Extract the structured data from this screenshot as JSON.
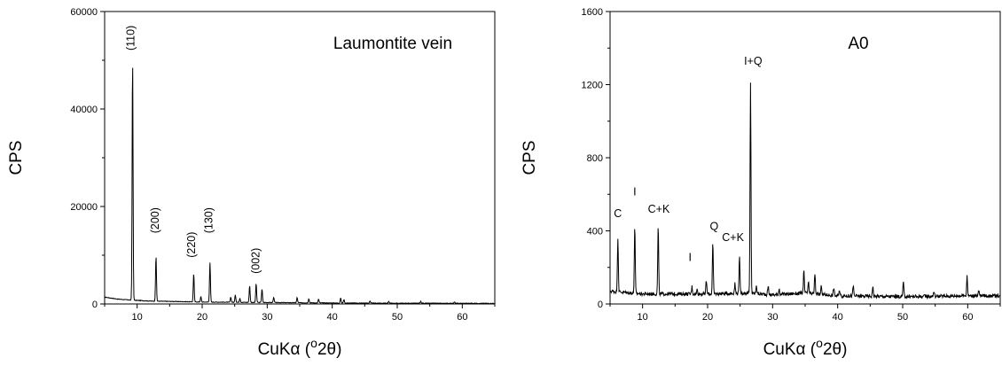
{
  "chart_data": [
    {
      "type": "line",
      "title": "Laumontite vein",
      "xlabel": "CuKα (",
      "xlabel_superscript": "o",
      "xlabel_suffix": "2θ)",
      "ylabel": "CPS",
      "xlim": [
        5,
        65
      ],
      "ylim": [
        0,
        60000
      ],
      "xticks": [
        10,
        20,
        30,
        40,
        50,
        60
      ],
      "yticks": [
        0,
        20000,
        40000,
        60000
      ],
      "baseline": [
        [
          5,
          1400
        ],
        [
          7,
          1000
        ],
        [
          9,
          800
        ],
        [
          12,
          600
        ],
        [
          20,
          400
        ],
        [
          30,
          300
        ],
        [
          40,
          200
        ],
        [
          50,
          150
        ],
        [
          65,
          120
        ]
      ],
      "peaks": [
        {
          "x": 9.3,
          "y": 50500
        },
        {
          "x": 12.9,
          "y": 9800
        },
        {
          "x": 18.7,
          "y": 6300
        },
        {
          "x": 19.8,
          "y": 1500
        },
        {
          "x": 21.2,
          "y": 8500
        },
        {
          "x": 24.4,
          "y": 1400
        },
        {
          "x": 25.1,
          "y": 1900
        },
        {
          "x": 25.8,
          "y": 1200
        },
        {
          "x": 27.3,
          "y": 3800
        },
        {
          "x": 28.3,
          "y": 4200
        },
        {
          "x": 29.2,
          "y": 3100
        },
        {
          "x": 31.0,
          "y": 1400
        },
        {
          "x": 34.6,
          "y": 1300
        },
        {
          "x": 36.4,
          "y": 1100
        },
        {
          "x": 37.9,
          "y": 1000
        },
        {
          "x": 41.3,
          "y": 1200
        },
        {
          "x": 41.8,
          "y": 900
        },
        {
          "x": 45.8,
          "y": 600
        },
        {
          "x": 48.7,
          "y": 500
        },
        {
          "x": 53.6,
          "y": 500
        },
        {
          "x": 58.8,
          "y": 400
        }
      ],
      "annotations": [
        {
          "text": "(110)",
          "x": 9.6,
          "y": 52000,
          "rotate": true
        },
        {
          "text": "(200)",
          "x": 13.3,
          "y": 14500,
          "rotate": true
        },
        {
          "text": "(220)",
          "x": 18.9,
          "y": 9500,
          "rotate": true
        },
        {
          "text": "(130)",
          "x": 21.6,
          "y": 14500,
          "rotate": true
        },
        {
          "text": "(002)",
          "x": 28.8,
          "y": 6200,
          "rotate": true
        }
      ]
    },
    {
      "type": "line",
      "title": "A0",
      "xlabel": "CuKα (",
      "xlabel_superscript": "o",
      "xlabel_suffix": "2θ)",
      "ylabel": "CPS",
      "xlim": [
        5,
        65
      ],
      "ylim": [
        0,
        1600
      ],
      "xticks": [
        10,
        20,
        30,
        40,
        50,
        60
      ],
      "yticks": [
        0,
        400,
        800,
        1200,
        1600
      ],
      "baseline": [
        [
          5,
          70
        ],
        [
          10,
          55
        ],
        [
          20,
          55
        ],
        [
          26,
          60
        ],
        [
          30,
          50
        ],
        [
          35,
          60
        ],
        [
          40,
          45
        ],
        [
          50,
          40
        ],
        [
          60,
          45
        ],
        [
          65,
          45
        ]
      ],
      "peaks": [
        {
          "x": 6.2,
          "y": 365
        },
        {
          "x": 8.8,
          "y": 420
        },
        {
          "x": 12.4,
          "y": 425
        },
        {
          "x": 17.6,
          "y": 95
        },
        {
          "x": 18.4,
          "y": 80
        },
        {
          "x": 19.8,
          "y": 130
        },
        {
          "x": 20.8,
          "y": 335
        },
        {
          "x": 24.2,
          "y": 110
        },
        {
          "x": 24.9,
          "y": 260
        },
        {
          "x": 26.6,
          "y": 1210
        },
        {
          "x": 27.5,
          "y": 105
        },
        {
          "x": 29.3,
          "y": 100
        },
        {
          "x": 31.0,
          "y": 85
        },
        {
          "x": 34.8,
          "y": 180
        },
        {
          "x": 35.5,
          "y": 120
        },
        {
          "x": 36.5,
          "y": 165
        },
        {
          "x": 37.5,
          "y": 100
        },
        {
          "x": 39.4,
          "y": 90
        },
        {
          "x": 40.3,
          "y": 75
        },
        {
          "x": 42.4,
          "y": 100
        },
        {
          "x": 45.4,
          "y": 95
        },
        {
          "x": 50.1,
          "y": 120
        },
        {
          "x": 54.8,
          "y": 70
        },
        {
          "x": 59.9,
          "y": 155
        },
        {
          "x": 61.7,
          "y": 70
        }
      ],
      "annotations": [
        {
          "text": "C",
          "x": 6.2,
          "y": 475,
          "rotate": false
        },
        {
          "text": "I",
          "x": 8.8,
          "y": 595,
          "rotate": false
        },
        {
          "text": "C+K",
          "x": 12.5,
          "y": 500,
          "rotate": false
        },
        {
          "text": "I",
          "x": 17.3,
          "y": 235,
          "rotate": false
        },
        {
          "text": "Q",
          "x": 21.0,
          "y": 405,
          "rotate": false
        },
        {
          "text": "C+K",
          "x": 23.9,
          "y": 345,
          "rotate": false
        },
        {
          "text": "I+Q",
          "x": 27.0,
          "y": 1310,
          "rotate": false
        }
      ]
    }
  ]
}
